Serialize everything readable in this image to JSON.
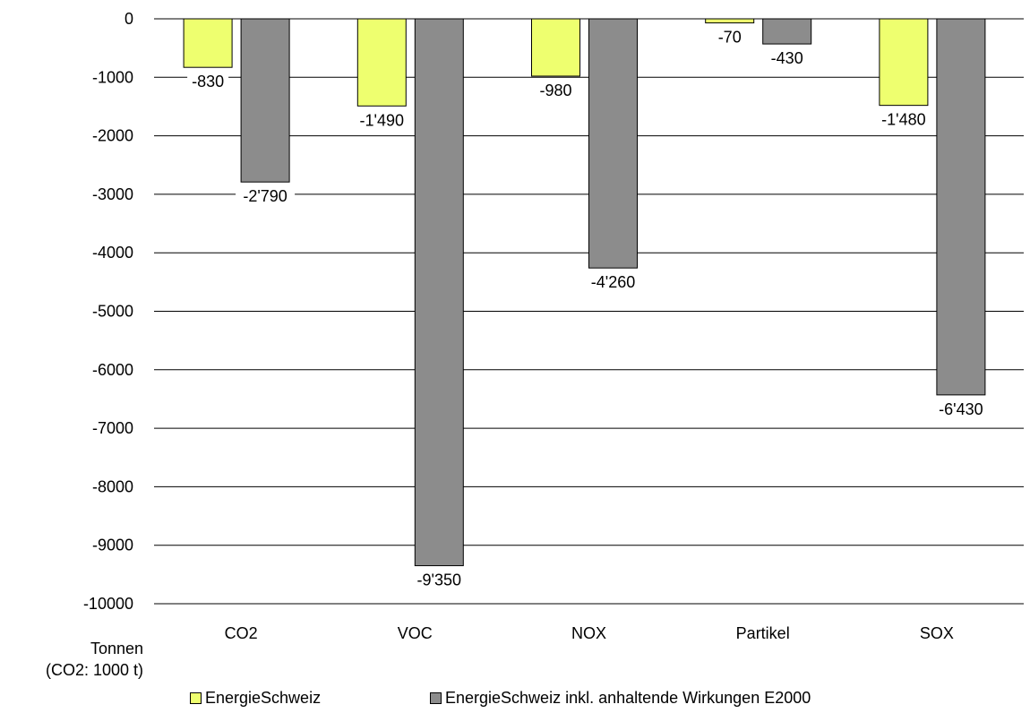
{
  "chart_data": {
    "type": "bar",
    "categories": [
      "CO2",
      "VOC",
      "NOX",
      "Partikel",
      "SOX"
    ],
    "series": [
      {
        "name": "EnergieSchweiz",
        "values": [
          -830,
          -1490,
          -980,
          -70,
          -1480
        ],
        "labels": [
          "-830",
          "-1'490",
          "-980",
          "-70",
          "-1'480"
        ],
        "color": "#eeff6f"
      },
      {
        "name": "EnergieSchweiz inkl. anhaltende Wirkungen E2000",
        "values": [
          -2790,
          -9350,
          -4260,
          -430,
          -6430
        ],
        "labels": [
          "-2'790",
          "-9'350",
          "-4'260",
          "-430",
          "-6'430"
        ],
        "color": "#8c8c8c"
      }
    ],
    "ylim": [
      -10000,
      0
    ],
    "yticks": [
      "0",
      "-1000",
      "-2000",
      "-3000",
      "-4000",
      "-5000",
      "-6000",
      "-7000",
      "-8000",
      "-9000",
      "-10000"
    ],
    "ylabel_line1": "Tonnen",
    "ylabel_line2": "(CO2: 1000 t)",
    "grid": true,
    "legend_position": "bottom"
  }
}
